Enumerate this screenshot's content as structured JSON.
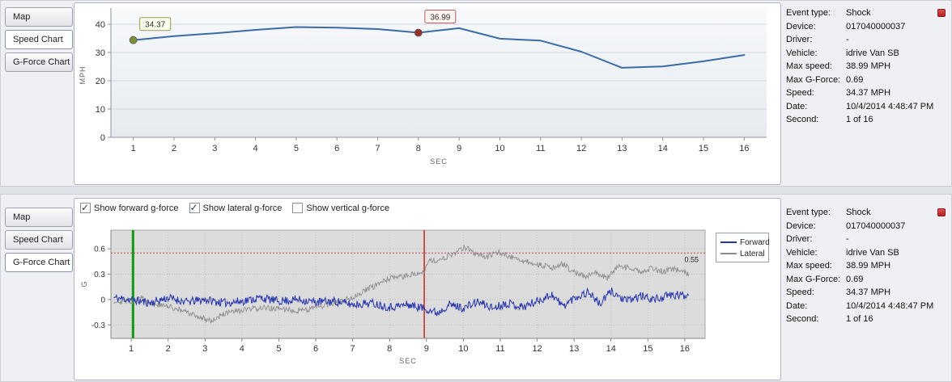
{
  "tabs": {
    "map": "Map",
    "speed": "Speed Chart",
    "gforce": "G-Force Chart"
  },
  "checkboxes": [
    {
      "label": "Show forward g-force",
      "checked": true
    },
    {
      "label": "Show lateral g-force",
      "checked": true
    },
    {
      "label": "Show vertical g-force",
      "checked": false
    }
  ],
  "details": {
    "rows": [
      {
        "label": "Event type:",
        "value": "Shock"
      },
      {
        "label": "Device:",
        "value": "017040000037"
      },
      {
        "label": "Driver:",
        "value": "-"
      },
      {
        "label": "Vehicle:",
        "value": "idrive Van SB"
      },
      {
        "label": "Max speed:",
        "value": "38.99 MPH"
      },
      {
        "label": "Max G-Force:",
        "value": "0.69"
      },
      {
        "label": "Speed:",
        "value": "34.37 MPH"
      },
      {
        "label": "Date:",
        "value": "10/4/2014 4:48:47 PM"
      },
      {
        "label": "Second:",
        "value": "1 of 16"
      }
    ]
  },
  "chart_data": [
    {
      "id": "speed",
      "type": "line",
      "title": "Speed Chart",
      "xlabel": "SEC",
      "ylabel": "MPH",
      "xticks": [
        1,
        2,
        3,
        4,
        5,
        6,
        7,
        8,
        9,
        10,
        11,
        12,
        13,
        14,
        15,
        16
      ],
      "yticks": [
        0,
        10,
        20,
        30,
        40
      ],
      "xlim": [
        0.45,
        16.55
      ],
      "ylim": [
        0,
        44
      ],
      "grid": "horizontal",
      "legend_position": "none",
      "series": [
        {
          "name": "Speed (MPH)",
          "color": "#3a6ca6",
          "x": [
            1,
            2,
            3,
            4,
            5,
            6,
            7,
            8,
            9,
            10,
            11,
            12,
            13,
            14,
            15,
            16
          ],
          "values": [
            34.37,
            35.8,
            36.8,
            38.0,
            38.99,
            38.8,
            38.3,
            36.99,
            38.6,
            34.9,
            34.2,
            30.3,
            24.6,
            25.1,
            26.9,
            29.1
          ]
        }
      ],
      "markers": [
        {
          "x": 1,
          "y": 34.37,
          "label": "34.37",
          "dot_color": "#7e9030",
          "box_border": "#93a04a",
          "box_fill": "#fbfcee"
        },
        {
          "x": 8,
          "y": 36.99,
          "label": "36.99",
          "dot_color": "#9c2e2e",
          "box_border": "#b06060",
          "box_fill": "#fdf4f1"
        }
      ]
    },
    {
      "id": "gforce",
      "type": "line",
      "title": "G-Force Chart",
      "xlabel": "SEC",
      "ylabel": "G",
      "xticks": [
        1,
        2,
        3,
        4,
        5,
        6,
        7,
        8,
        9,
        10,
        11,
        12,
        13,
        14,
        15,
        16
      ],
      "yticks": [
        -0.3,
        0,
        0.3,
        0.6
      ],
      "xlim": [
        0.45,
        16.55
      ],
      "ylim": [
        -0.46,
        0.82
      ],
      "grid": "dotted-both",
      "threshold": {
        "y": 0.55,
        "label": "0.55",
        "color": "#d14343"
      },
      "event_lines": [
        {
          "name": "event-start-line",
          "x": 1.05,
          "color": "#0f9a0f",
          "width": 3
        },
        {
          "name": "event-trigger-line",
          "x": 8.94,
          "color": "#cc2222",
          "width": 1.5
        }
      ],
      "legend": {
        "position": "right",
        "entries": [
          "Forward",
          "Lateral"
        ]
      },
      "series": [
        {
          "name": "Forward",
          "color": "#2433b0",
          "noise": 0.05,
          "seed": 11,
          "keypoints": [
            [
              0.5,
              0.02
            ],
            [
              1,
              0
            ],
            [
              1.5,
              -0.04
            ],
            [
              2,
              0.02
            ],
            [
              2.5,
              -0.03
            ],
            [
              3,
              0
            ],
            [
              3.5,
              -0.04
            ],
            [
              4,
              -0.02
            ],
            [
              4.5,
              0.02
            ],
            [
              5,
              -0.02
            ],
            [
              5.5,
              0
            ],
            [
              6,
              -0.03
            ],
            [
              6.5,
              -0.02
            ],
            [
              7,
              -0.06
            ],
            [
              7.5,
              -0.04
            ],
            [
              8,
              -0.09
            ],
            [
              8.5,
              -0.06
            ],
            [
              9,
              -0.11
            ],
            [
              9.3,
              -0.16
            ],
            [
              9.6,
              -0.06
            ],
            [
              10,
              -0.1
            ],
            [
              10.4,
              -0.03
            ],
            [
              10.8,
              -0.1
            ],
            [
              11.2,
              -0.04
            ],
            [
              11.6,
              -0.09
            ],
            [
              12,
              -0.02
            ],
            [
              12.4,
              0.06
            ],
            [
              12.7,
              -0.08
            ],
            [
              13,
              0.02
            ],
            [
              13.4,
              0.09
            ],
            [
              13.7,
              -0.06
            ],
            [
              14,
              0.1
            ],
            [
              14.4,
              -0.02
            ],
            [
              14.8,
              0.04
            ],
            [
              15.2,
              0
            ],
            [
              15.6,
              0.05
            ],
            [
              16.1,
              0.05
            ]
          ]
        },
        {
          "name": "Lateral",
          "color": "#8c8c8c",
          "noise": 0.035,
          "seed": 29,
          "keypoints": [
            [
              0.5,
              -0.02
            ],
            [
              1,
              -0.02
            ],
            [
              1.3,
              0.02
            ],
            [
              1.6,
              -0.06
            ],
            [
              2,
              -0.08
            ],
            [
              2.3,
              -0.12
            ],
            [
              2.6,
              -0.17
            ],
            [
              3,
              -0.23
            ],
            [
              3.2,
              -0.25
            ],
            [
              3.5,
              -0.17
            ],
            [
              4,
              -0.13
            ],
            [
              4.5,
              -0.1
            ],
            [
              5,
              -0.11
            ],
            [
              5.5,
              -0.13
            ],
            [
              6,
              -0.1
            ],
            [
              6.5,
              -0.04
            ],
            [
              7,
              0.03
            ],
            [
              7.5,
              0.14
            ],
            [
              8,
              0.25
            ],
            [
              8.4,
              0.27
            ],
            [
              8.7,
              0.31
            ],
            [
              8.95,
              0.34
            ],
            [
              9.05,
              0.47
            ],
            [
              9.3,
              0.44
            ],
            [
              9.6,
              0.52
            ],
            [
              9.9,
              0.58
            ],
            [
              10.1,
              0.62
            ],
            [
              10.3,
              0.55
            ],
            [
              10.6,
              0.5
            ],
            [
              10.9,
              0.56
            ],
            [
              11.2,
              0.52
            ],
            [
              11.5,
              0.47
            ],
            [
              11.8,
              0.44
            ],
            [
              12.1,
              0.41
            ],
            [
              12.4,
              0.37
            ],
            [
              12.7,
              0.42
            ],
            [
              13,
              0.32
            ],
            [
              13.3,
              0.27
            ],
            [
              13.6,
              0.32
            ],
            [
              13.9,
              0.25
            ],
            [
              14.2,
              0.4
            ],
            [
              14.5,
              0.37
            ],
            [
              14.8,
              0.32
            ],
            [
              15.1,
              0.37
            ],
            [
              15.4,
              0.33
            ],
            [
              15.7,
              0.36
            ],
            [
              16.1,
              0.3
            ]
          ]
        }
      ]
    }
  ]
}
